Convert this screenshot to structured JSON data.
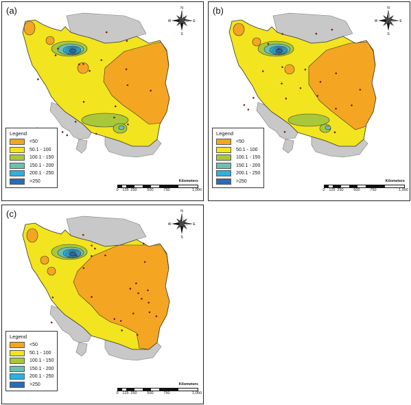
{
  "panels": [
    {
      "label": "(a)"
    },
    {
      "label": "(b)"
    },
    {
      "label": "(c)"
    }
  ],
  "legend": {
    "title": "Legend",
    "classes": [
      {
        "label": "<50",
        "color": "#f4a623"
      },
      {
        "label": "50.1 - 100",
        "color": "#f2e41e"
      },
      {
        "label": "100.1 - 150",
        "color": "#a8c83a"
      },
      {
        "label": "150.1 - 200",
        "color": "#6cc0b0"
      },
      {
        "label": "200.1 - 250",
        "color": "#2fb0e0"
      },
      {
        "label": ">250",
        "color": "#2a6cb4"
      }
    ]
  },
  "scale": {
    "unit": "Kilometers",
    "ticks": [
      "0",
      "125",
      "250",
      "500",
      "750",
      "1,000"
    ]
  },
  "compass": {
    "n": "N",
    "s": "S",
    "e": "E",
    "w": "W"
  },
  "colors": {
    "neighbor": "#c8c8c8",
    "outline": "#333333",
    "station": "#7a1c1c"
  }
}
